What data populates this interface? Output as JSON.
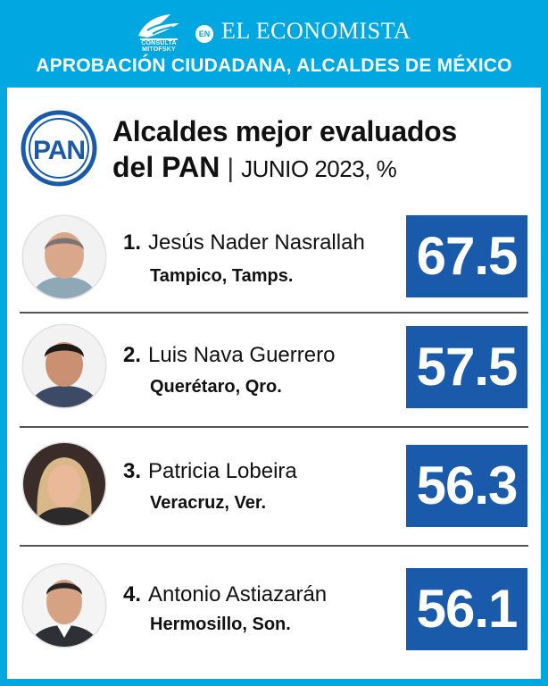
{
  "header": {
    "pollster_logo_text": "CONSULTA MITOFSKY",
    "connector": "EN",
    "publisher": "EL ECONOMISTA",
    "banner": "APROBACIÓN CIUDADANA, ALCALDES DE MÉXICO",
    "accent_color": "#00a7e1"
  },
  "party_logo": {
    "text": "PAN",
    "color": "#1a5aaa"
  },
  "title": {
    "line1": "Alcaldes mejor evaluados",
    "line2_bold": "del PAN",
    "separator": "|",
    "line2_date": "JUNIO 2023, %"
  },
  "chart_data": {
    "type": "table",
    "title": "Alcaldes mejor evaluados del PAN | JUNIO 2023, %",
    "columns": [
      "rank",
      "name",
      "city",
      "approval"
    ],
    "rows": [
      {
        "rank": "1.",
        "name": "Jesús Nader Nasrallah",
        "city": "Tampico, Tamps.",
        "value": "67.5",
        "avatar_icon": "portrait-icon"
      },
      {
        "rank": "2.",
        "name": "Luis Nava Guerrero",
        "city": "Querétaro, Qro.",
        "value": "57.5",
        "avatar_icon": "portrait-icon"
      },
      {
        "rank": "3.",
        "name": "Patricia Lobeira",
        "city": "Veracruz, Ver.",
        "value": "56.3",
        "avatar_icon": "portrait-icon"
      },
      {
        "rank": "4.",
        "name": "Antonio Astiazarán",
        "city": "Hermosillo, Son.",
        "value": "56.1",
        "avatar_icon": "portrait-icon"
      }
    ],
    "box_color": "#1a5aaa"
  }
}
